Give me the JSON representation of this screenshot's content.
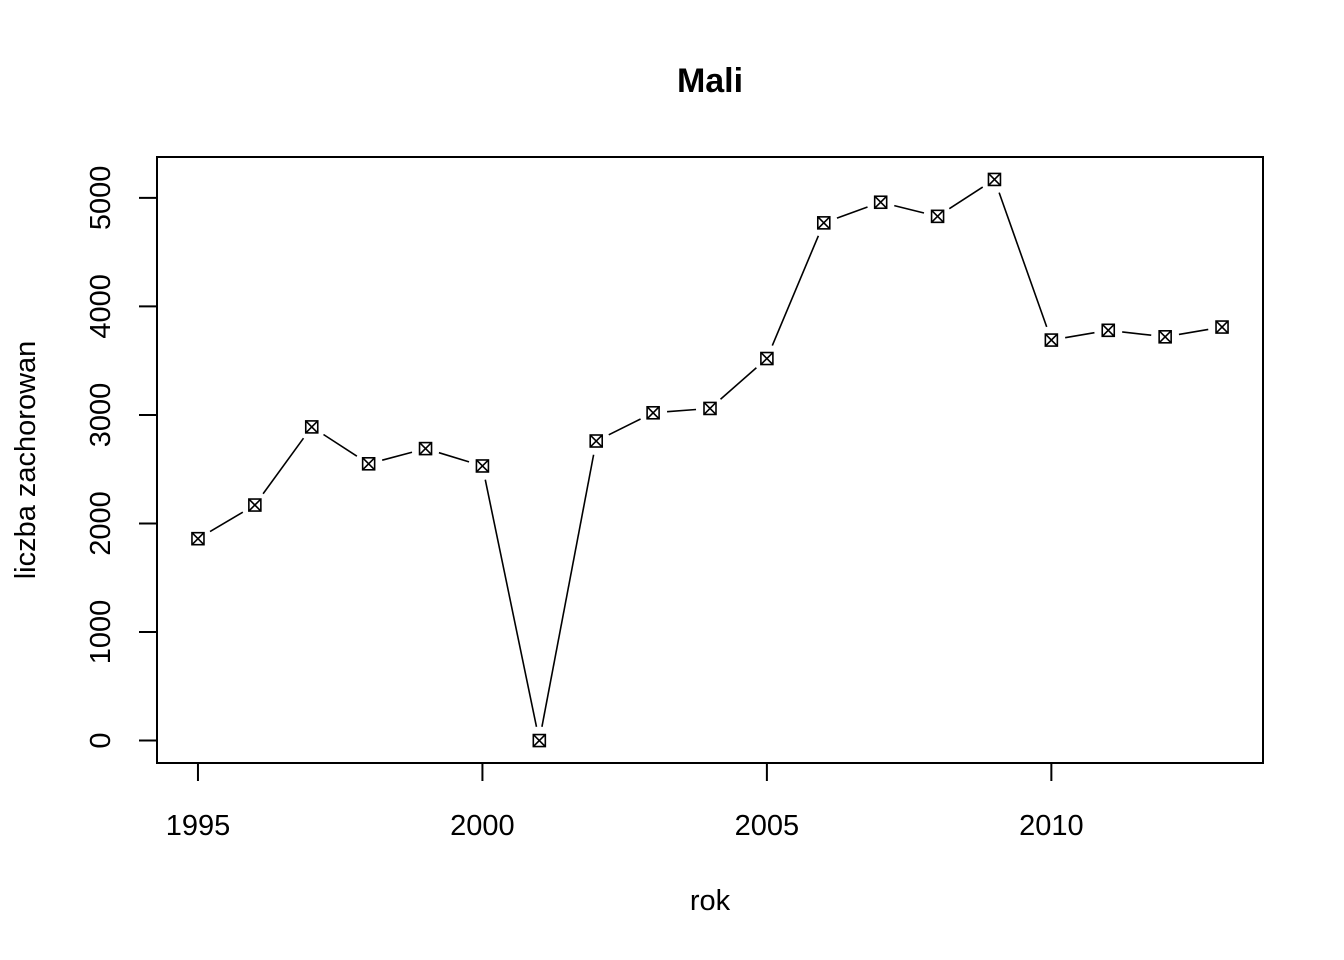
{
  "chart_data": {
    "type": "line",
    "title": "Mali",
    "xlabel": "rok",
    "ylabel": "liczba zachorowan",
    "x": [
      1995,
      1996,
      1997,
      1998,
      1999,
      2000,
      2001,
      2002,
      2003,
      2004,
      2005,
      2006,
      2007,
      2008,
      2009,
      2010,
      2011,
      2012,
      2013
    ],
    "series": [
      {
        "values": [
          1860,
          2170,
          2890,
          2550,
          2690,
          2530,
          0,
          2760,
          3020,
          3060,
          3520,
          4770,
          4960,
          4830,
          5170,
          3690,
          3780,
          3720,
          3810
        ],
        "color": "#000000",
        "marker": "box-x"
      }
    ],
    "xlim": [
      1994.28,
      2013.72
    ],
    "ylim": [
      -206.8,
      5376.8
    ],
    "xticks": [
      1995,
      2000,
      2005,
      2010
    ],
    "yticks": [
      0,
      1000,
      2000,
      3000,
      4000,
      5000
    ],
    "grid": false,
    "legend": "none"
  }
}
